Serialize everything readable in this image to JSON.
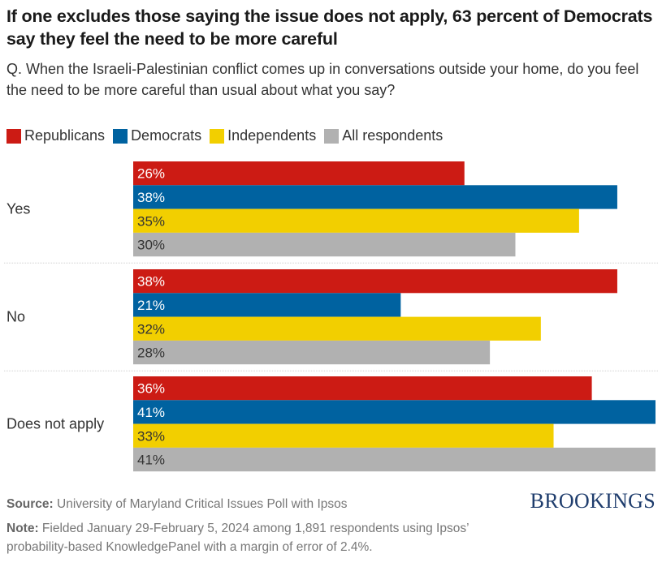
{
  "title": "If one excludes those saying the issue does not apply, 63 percent of Democrats say they feel the need to be more careful",
  "subtitle": "Q. When the Israeli-Palestinian conflict comes up in conversations outside your home, do you feel the need to be more careful than usual about what you say?",
  "legend": [
    {
      "label": "Republicans",
      "color": "#cc1b14"
    },
    {
      "label": "Democrats",
      "color": "#0062a0"
    },
    {
      "label": "Independents",
      "color": "#f2cf00"
    },
    {
      "label": "All respondents",
      "color": "#b1b1b1"
    }
  ],
  "footer": {
    "source_label": "Source:",
    "source_text": "University of Maryland Critical Issues Poll with Ipsos",
    "note_label": "Note:",
    "note_text": "Fielded January 29-February 5, 2024 among 1,891 respondents using Ipsos’ probability-based KnowledgePanel with a margin of error of 2.4%.",
    "logo": "BROOKINGS"
  },
  "chart_data": {
    "type": "bar",
    "orientation": "horizontal",
    "title": "If one excludes those saying the issue does not apply, 63 percent of Democrats say they feel the need to be more careful",
    "xlabel": "",
    "ylabel": "",
    "xlim": [
      0,
      41
    ],
    "grid": false,
    "legend_position": "top-left",
    "categories": [
      "Yes",
      "No",
      "Does not apply"
    ],
    "series": [
      {
        "name": "Republicans",
        "color": "#cc1b14",
        "label_color": "#ffffff",
        "values": [
          26,
          38,
          36
        ],
        "labels": [
          "26%",
          "38%",
          "36%"
        ]
      },
      {
        "name": "Democrats",
        "color": "#0062a0",
        "label_color": "#ffffff",
        "values": [
          38,
          21,
          41
        ],
        "labels": [
          "38%",
          "21%",
          "41%"
        ]
      },
      {
        "name": "Independents",
        "color": "#f2cf00",
        "label_color": "#333333",
        "values": [
          35,
          32,
          33
        ],
        "labels": [
          "35%",
          "32%",
          "33%"
        ]
      },
      {
        "name": "All respondents",
        "color": "#b1b1b1",
        "label_color": "#333333",
        "values": [
          30,
          28,
          41
        ],
        "labels": [
          "30%",
          "28%",
          "41%"
        ]
      }
    ]
  }
}
